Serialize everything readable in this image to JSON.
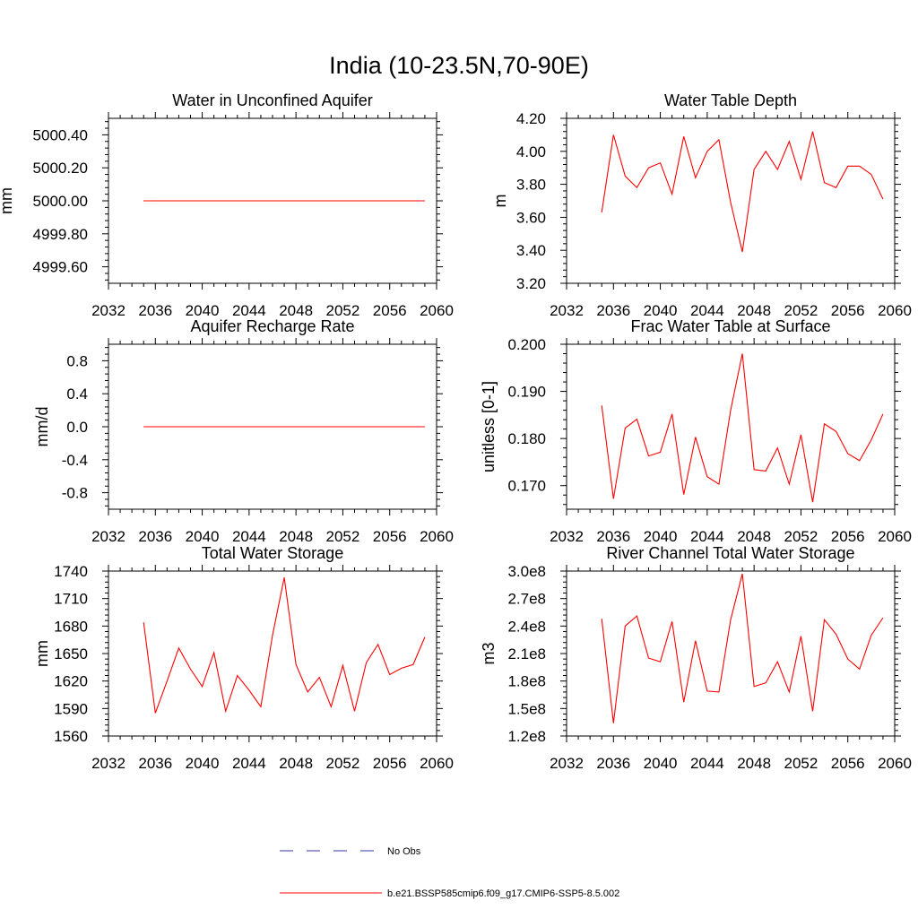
{
  "suptitle": "India (10-23.5N,70-90E)",
  "chart_data": [
    {
      "type": "line",
      "title": "Water in Unconfined Aquifer",
      "ylabel": "mm",
      "xlim": [
        2032,
        2060
      ],
      "xticks": [
        2032,
        2036,
        2040,
        2044,
        2048,
        2052,
        2056,
        2060
      ],
      "ylim": [
        4999.5,
        5000.5
      ],
      "yticks": [
        4999.6,
        4999.8,
        5000.0,
        5000.2,
        5000.4
      ],
      "ytick_labels": [
        "4999.60",
        "4999.80",
        "5000.00",
        "5000.20",
        "5000.40"
      ],
      "x": [
        2035,
        2036,
        2037,
        2038,
        2039,
        2040,
        2041,
        2042,
        2043,
        2044,
        2045,
        2046,
        2047,
        2048,
        2049,
        2050,
        2051,
        2052,
        2053,
        2054,
        2055,
        2056,
        2057,
        2058,
        2059
      ],
      "series": [
        {
          "name": "b.e21.BSSP585cmip6.f09_g17.CMIP6-SSP5-8.5.002",
          "color": "#ff0000",
          "values": [
            5000,
            5000,
            5000,
            5000,
            5000,
            5000,
            5000,
            5000,
            5000,
            5000,
            5000,
            5000,
            5000,
            5000,
            5000,
            5000,
            5000,
            5000,
            5000,
            5000,
            5000,
            5000,
            5000,
            5000,
            5000
          ]
        }
      ]
    },
    {
      "type": "line",
      "title": "Water Table Depth",
      "ylabel": "m",
      "xlim": [
        2032,
        2060
      ],
      "xticks": [
        2032,
        2036,
        2040,
        2044,
        2048,
        2052,
        2056,
        2060
      ],
      "ylim": [
        3.2,
        4.2
      ],
      "yticks": [
        3.2,
        3.4,
        3.6,
        3.8,
        4.0,
        4.2
      ],
      "ytick_labels": [
        "3.20",
        "3.40",
        "3.60",
        "3.80",
        "4.00",
        "4.20"
      ],
      "x": [
        2035,
        2036,
        2037,
        2038,
        2039,
        2040,
        2041,
        2042,
        2043,
        2044,
        2045,
        2046,
        2047,
        2048,
        2049,
        2050,
        2051,
        2052,
        2053,
        2054,
        2055,
        2056,
        2057,
        2058,
        2059
      ],
      "series": [
        {
          "name": "b.e21.BSSP585cmip6.f09_g17.CMIP6-SSP5-8.5.002",
          "color": "#ff0000",
          "values": [
            3.63,
            4.1,
            3.85,
            3.78,
            3.9,
            3.93,
            3.74,
            4.09,
            3.84,
            4.0,
            4.07,
            3.69,
            3.39,
            3.89,
            4.0,
            3.89,
            4.06,
            3.83,
            4.12,
            3.81,
            3.78,
            3.91,
            3.91,
            3.86,
            3.71
          ]
        }
      ]
    },
    {
      "type": "line",
      "title": "Aquifer Recharge Rate",
      "ylabel": "mm/d",
      "xlim": [
        2032,
        2060
      ],
      "xticks": [
        2032,
        2036,
        2040,
        2044,
        2048,
        2052,
        2056,
        2060
      ],
      "ylim": [
        -1.0,
        1.0
      ],
      "yticks": [
        -0.8,
        -0.4,
        0.0,
        0.4,
        0.8
      ],
      "ytick_labels": [
        "-0.8",
        "-0.4",
        "0.0",
        "0.4",
        "0.8"
      ],
      "x": [
        2035,
        2036,
        2037,
        2038,
        2039,
        2040,
        2041,
        2042,
        2043,
        2044,
        2045,
        2046,
        2047,
        2048,
        2049,
        2050,
        2051,
        2052,
        2053,
        2054,
        2055,
        2056,
        2057,
        2058,
        2059
      ],
      "series": [
        {
          "name": "b.e21.BSSP585cmip6.f09_g17.CMIP6-SSP5-8.5.002",
          "color": "#ff0000",
          "values": [
            0,
            0,
            0,
            0,
            0,
            0,
            0,
            0,
            0,
            0,
            0,
            0,
            0,
            0,
            0,
            0,
            0,
            0,
            0,
            0,
            0,
            0,
            0,
            0,
            0
          ]
        }
      ]
    },
    {
      "type": "line",
      "title": "Frac Water Table at Surface",
      "ylabel": "unitless [0-1]",
      "xlim": [
        2032,
        2060
      ],
      "xticks": [
        2032,
        2036,
        2040,
        2044,
        2048,
        2052,
        2056,
        2060
      ],
      "ylim": [
        0.165,
        0.2
      ],
      "yticks": [
        0.17,
        0.18,
        0.19,
        0.2
      ],
      "ytick_labels": [
        "0.170",
        "0.180",
        "0.190",
        "0.200"
      ],
      "x": [
        2035,
        2036,
        2037,
        2038,
        2039,
        2040,
        2041,
        2042,
        2043,
        2044,
        2045,
        2046,
        2047,
        2048,
        2049,
        2050,
        2051,
        2052,
        2053,
        2054,
        2055,
        2056,
        2057,
        2058,
        2059
      ],
      "series": [
        {
          "name": "b.e21.BSSP585cmip6.f09_g17.CMIP6-SSP5-8.5.002",
          "color": "#ff0000",
          "values": [
            0.187,
            0.1672,
            0.1822,
            0.1841,
            0.1763,
            0.1771,
            0.1852,
            0.1681,
            0.1803,
            0.1719,
            0.1703,
            0.186,
            0.198,
            0.1734,
            0.1731,
            0.178,
            0.1703,
            0.1808,
            0.1665,
            0.1831,
            0.1815,
            0.1768,
            0.1753,
            0.1797,
            0.1852
          ]
        }
      ]
    },
    {
      "type": "line",
      "title": "Total Water Storage",
      "ylabel": "mm",
      "xlim": [
        2032,
        2060
      ],
      "xticks": [
        2032,
        2036,
        2040,
        2044,
        2048,
        2052,
        2056,
        2060
      ],
      "ylim": [
        1560,
        1740
      ],
      "yticks": [
        1560,
        1590,
        1620,
        1650,
        1680,
        1710,
        1740
      ],
      "ytick_labels": [
        "1560",
        "1590",
        "1620",
        "1650",
        "1680",
        "1710",
        "1740"
      ],
      "x": [
        2035,
        2036,
        2037,
        2038,
        2039,
        2040,
        2041,
        2042,
        2043,
        2044,
        2045,
        2046,
        2047,
        2048,
        2049,
        2050,
        2051,
        2052,
        2053,
        2054,
        2055,
        2056,
        2057,
        2058,
        2059
      ],
      "series": [
        {
          "name": "b.e21.BSSP585cmip6.f09_g17.CMIP6-SSP5-8.5.002",
          "color": "#ff0000",
          "values": [
            1684,
            1585,
            1620,
            1656,
            1633,
            1614,
            1651,
            1587,
            1626,
            1610,
            1592,
            1670,
            1733,
            1638,
            1608,
            1624,
            1592,
            1637,
            1587,
            1640,
            1660,
            1627,
            1634,
            1638,
            1668
          ]
        }
      ]
    },
    {
      "type": "line",
      "title": "River Channel Total Water Storage",
      "ylabel": "m3",
      "xlim": [
        2032,
        2060
      ],
      "xticks": [
        2032,
        2036,
        2040,
        2044,
        2048,
        2052,
        2056,
        2060
      ],
      "ylim": [
        120000000.0,
        300000000.0
      ],
      "yticks": [
        120000000.0,
        150000000.0,
        180000000.0,
        210000000.0,
        240000000.0,
        270000000.0,
        300000000.0
      ],
      "ytick_labels": [
        "1.2e8",
        "1.5e8",
        "1.8e8",
        "2.1e8",
        "2.4e8",
        "2.7e8",
        "3.0e8"
      ],
      "x": [
        2035,
        2036,
        2037,
        2038,
        2039,
        2040,
        2041,
        2042,
        2043,
        2044,
        2045,
        2046,
        2047,
        2048,
        2049,
        2050,
        2051,
        2052,
        2053,
        2054,
        2055,
        2056,
        2057,
        2058,
        2059
      ],
      "series": [
        {
          "name": "b.e21.BSSP585cmip6.f09_g17.CMIP6-SSP5-8.5.002",
          "color": "#ff0000",
          "values": [
            248000000.0,
            134000000.0,
            240000000.0,
            251000000.0,
            205000000.0,
            201000000.0,
            245000000.0,
            157000000.0,
            224000000.0,
            169000000.0,
            168000000.0,
            247000000.0,
            297000000.0,
            174000000.0,
            178000000.0,
            201000000.0,
            168000000.0,
            229000000.0,
            147000000.0,
            247000000.0,
            231000000.0,
            204000000.0,
            193000000.0,
            230000000.0,
            249000000.0
          ]
        }
      ]
    }
  ],
  "legend": {
    "placement": "bottom-center",
    "entries": [
      {
        "label": "No Obs",
        "color": "#3333aa",
        "style": "dashed"
      },
      {
        "label": "b.e21.BSSP585cmip6.f09_g17.CMIP6-SSP5-8.5.002",
        "color": "#ff0000",
        "style": "solid"
      }
    ]
  }
}
